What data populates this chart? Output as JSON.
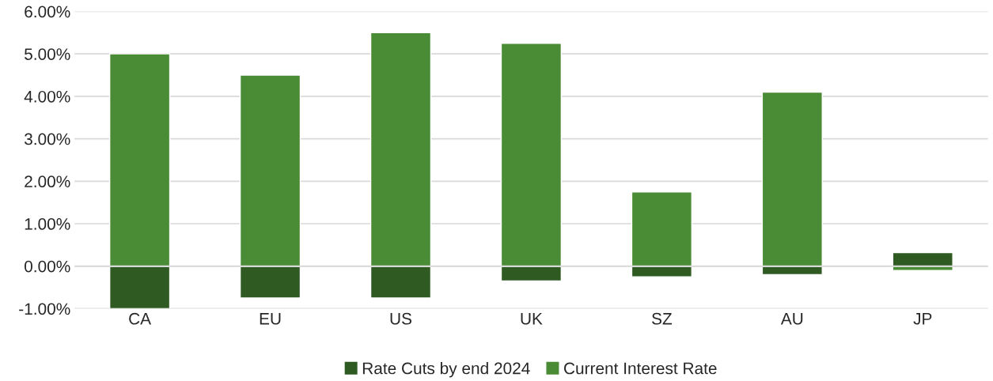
{
  "chart_data": {
    "type": "bar",
    "stacked": true,
    "categories": [
      "CA",
      "EU",
      "US",
      "UK",
      "SZ",
      "AU",
      "JP"
    ],
    "series": [
      {
        "name": "Rate Cuts by end 2024",
        "color": "#2f5a22",
        "values": [
          -1.0,
          -0.75,
          -0.75,
          -0.35,
          -0.25,
          -0.2,
          0.32
        ]
      },
      {
        "name": "Current Interest Rate",
        "color": "#4a8c35",
        "values": [
          5.0,
          4.5,
          5.5,
          5.25,
          1.75,
          4.1,
          -0.1
        ]
      }
    ],
    "ylim": [
      -1.0,
      6.0
    ],
    "yticks": [
      {
        "value": -1,
        "label": "-1.00%"
      },
      {
        "value": 0,
        "label": "0.00%"
      },
      {
        "value": 1,
        "label": "1.00%"
      },
      {
        "value": 2,
        "label": "2.00%"
      },
      {
        "value": 3,
        "label": "3.00%"
      },
      {
        "value": 4,
        "label": "4.00%"
      },
      {
        "value": 5,
        "label": "5.00%"
      },
      {
        "value": 6,
        "label": "6.00%"
      }
    ],
    "grid": "y",
    "legend": "bottom"
  }
}
